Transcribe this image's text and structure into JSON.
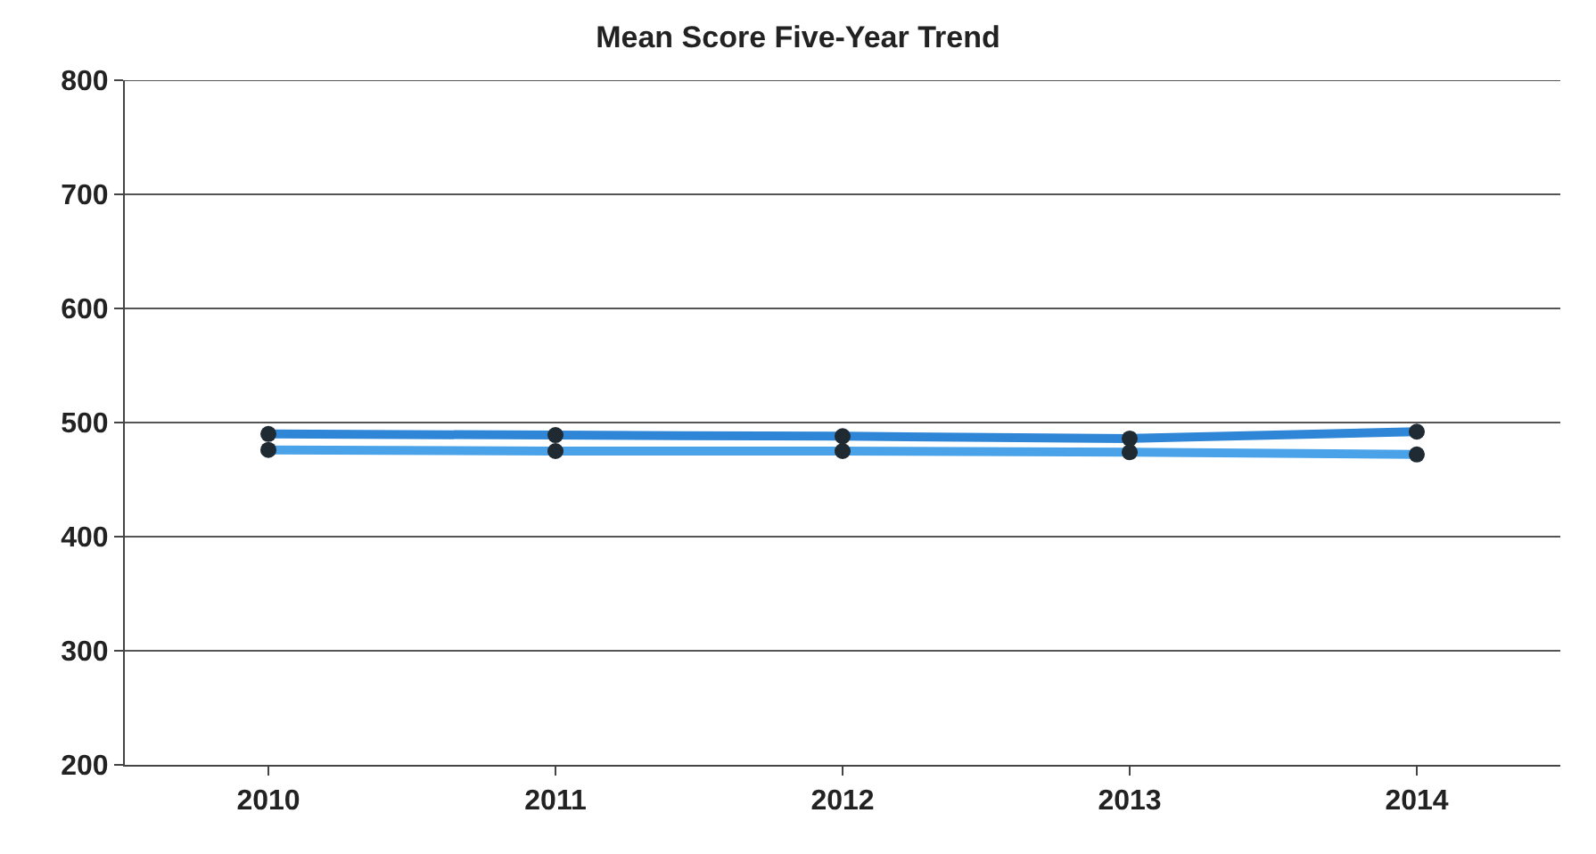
{
  "chart_data": {
    "type": "line",
    "title": "Mean Score Five-Year Trend",
    "categories": [
      "2010",
      "2011",
      "2012",
      "2013",
      "2014"
    ],
    "series": [
      {
        "color": "#2f86d6",
        "values": [
          490,
          489,
          488,
          486,
          492
        ]
      },
      {
        "color": "#4aa3e8",
        "values": [
          476,
          475,
          475,
          474,
          472
        ]
      }
    ],
    "ylim": [
      200,
      800
    ],
    "yticks": [
      200,
      300,
      400,
      500,
      600,
      700,
      800
    ],
    "grid": "y",
    "marker": "circle"
  }
}
